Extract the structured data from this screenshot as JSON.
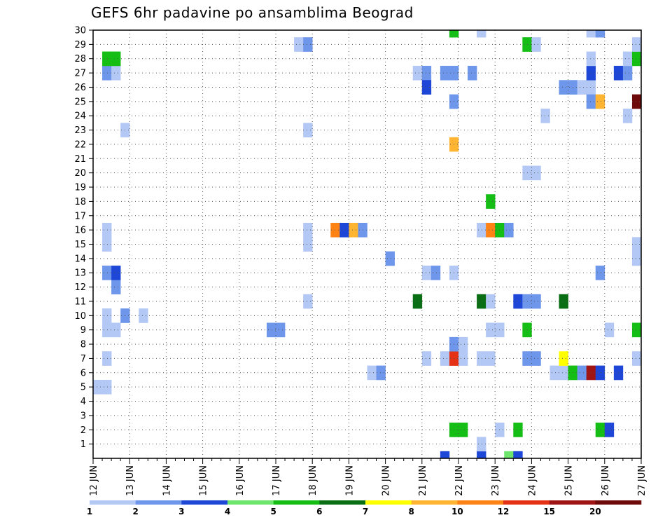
{
  "chart_data": {
    "type": "heatmap",
    "title": "GEFS 6hr padavine po ansamblima Beograd",
    "x_tick_labels": [
      "12 JUN",
      "13 JUN",
      "14 JUN",
      "15 JUN",
      "16 JUN",
      "17 JUN",
      "18 JUN",
      "19 JUN",
      "20 JUN",
      "21 JUN",
      "22 JUN",
      "23 JUN",
      "24 JUN",
      "25 JUN",
      "26 JUN",
      "27 JUN"
    ],
    "y_tick_labels": [
      1,
      2,
      3,
      4,
      5,
      6,
      7,
      8,
      9,
      10,
      11,
      12,
      13,
      14,
      15,
      16,
      17,
      18,
      19,
      20,
      21,
      22,
      23,
      24,
      25,
      26,
      27,
      28,
      29,
      30
    ],
    "x_range_days": [
      0,
      15
    ],
    "y_range": [
      0,
      30
    ],
    "grid": true,
    "legend": {
      "position": "bottom",
      "labels": [
        "1",
        "2",
        "3",
        "4",
        "5",
        "6",
        "7",
        "8",
        "10",
        "12",
        "15",
        "20"
      ],
      "colors": [
        "#b4c8f5",
        "#6e96eb",
        "#1e46d7",
        "#6ee66e",
        "#14be14",
        "#0a6e14",
        "#ffff00",
        "#ffb432",
        "#ff8214",
        "#e63214",
        "#a01414",
        "#6e0a0a"
      ]
    },
    "cells_note": "each cell: [day offset from 12 JUN (data units), ensemble member, color class 1-12]",
    "cells": [
      [
        0.0,
        5,
        1
      ],
      [
        0.25,
        5,
        1
      ],
      [
        0.25,
        7,
        1
      ],
      [
        0.25,
        9,
        1
      ],
      [
        0.5,
        9,
        1
      ],
      [
        0.25,
        10,
        1
      ],
      [
        0.5,
        12,
        2
      ],
      [
        0.25,
        13,
        2
      ],
      [
        0.5,
        13,
        3
      ],
      [
        0.25,
        15,
        1
      ],
      [
        0.25,
        16,
        1
      ],
      [
        0.25,
        27,
        2
      ],
      [
        0.5,
        27,
        1
      ],
      [
        0.25,
        28,
        5
      ],
      [
        0.5,
        28,
        5
      ],
      [
        0.75,
        10,
        2
      ],
      [
        0.75,
        23,
        1
      ],
      [
        1.25,
        10,
        1
      ],
      [
        4.75,
        9,
        2
      ],
      [
        5.0,
        9,
        2
      ],
      [
        5.75,
        11,
        1
      ],
      [
        5.75,
        15,
        1
      ],
      [
        5.75,
        16,
        1
      ],
      [
        5.75,
        23,
        1
      ],
      [
        5.5,
        29,
        1
      ],
      [
        5.75,
        29,
        2
      ],
      [
        6.5,
        16,
        9
      ],
      [
        6.75,
        16,
        3
      ],
      [
        7.0,
        16,
        8
      ],
      [
        7.25,
        16,
        2
      ],
      [
        7.5,
        6,
        1
      ],
      [
        7.75,
        6,
        2
      ],
      [
        8.0,
        14,
        2
      ],
      [
        8.75,
        11,
        6
      ],
      [
        9.0,
        7,
        1
      ],
      [
        9.0,
        13,
        1
      ],
      [
        9.25,
        13,
        2
      ],
      [
        8.75,
        27,
        1
      ],
      [
        9.0,
        27,
        2
      ],
      [
        9.0,
        26,
        3
      ],
      [
        9.5,
        0,
        3
      ],
      [
        9.5,
        7,
        1
      ],
      [
        9.75,
        2,
        5
      ],
      [
        10.0,
        2,
        5
      ],
      [
        9.75,
        7,
        10
      ],
      [
        10.0,
        7,
        1
      ],
      [
        9.75,
        8,
        2
      ],
      [
        10.0,
        8,
        1
      ],
      [
        9.75,
        13,
        1
      ],
      [
        9.75,
        22,
        8
      ],
      [
        9.75,
        25,
        2
      ],
      [
        9.75,
        27,
        2
      ],
      [
        9.5,
        27,
        2
      ],
      [
        9.75,
        30,
        5
      ],
      [
        10.5,
        0,
        3
      ],
      [
        10.5,
        1,
        1
      ],
      [
        10.5,
        7,
        1
      ],
      [
        10.5,
        11,
        6
      ],
      [
        10.5,
        16,
        1
      ],
      [
        10.75,
        16,
        9
      ],
      [
        11.0,
        16,
        5
      ],
      [
        11.25,
        16,
        2
      ],
      [
        10.75,
        18,
        5
      ],
      [
        10.5,
        30,
        1
      ],
      [
        10.25,
        27,
        2
      ],
      [
        10.75,
        9,
        1
      ],
      [
        11.0,
        9,
        1
      ],
      [
        10.75,
        11,
        1
      ],
      [
        10.75,
        7,
        1
      ],
      [
        11.0,
        2,
        1
      ],
      [
        11.25,
        0,
        4
      ],
      [
        11.5,
        0,
        3
      ],
      [
        11.5,
        2,
        5
      ],
      [
        11.5,
        11,
        3
      ],
      [
        11.75,
        11,
        2
      ],
      [
        12.0,
        11,
        2
      ],
      [
        11.75,
        7,
        2
      ],
      [
        12.0,
        7,
        2
      ],
      [
        11.75,
        9,
        5
      ],
      [
        11.75,
        20,
        1
      ],
      [
        12.0,
        20,
        1
      ],
      [
        11.75,
        29,
        5
      ],
      [
        12.0,
        29,
        1
      ],
      [
        12.25,
        24,
        1
      ],
      [
        12.5,
        6,
        1
      ],
      [
        12.75,
        6,
        1
      ],
      [
        12.75,
        11,
        6
      ],
      [
        12.75,
        7,
        7
      ],
      [
        13.0,
        6,
        5
      ],
      [
        13.25,
        6,
        2
      ],
      [
        13.5,
        6,
        11
      ],
      [
        13.75,
        6,
        3
      ],
      [
        13.75,
        2,
        5
      ],
      [
        14.0,
        2,
        3
      ],
      [
        13.75,
        13,
        2
      ],
      [
        14.0,
        9,
        1
      ],
      [
        12.75,
        26,
        2
      ],
      [
        13.0,
        26,
        2
      ],
      [
        13.25,
        26,
        1
      ],
      [
        13.5,
        26,
        1
      ],
      [
        13.5,
        25,
        2
      ],
      [
        13.75,
        25,
        8
      ],
      [
        13.5,
        27,
        3
      ],
      [
        13.5,
        28,
        1
      ],
      [
        13.5,
        30,
        1
      ],
      [
        13.75,
        30,
        2
      ],
      [
        14.25,
        27,
        3
      ],
      [
        14.5,
        27,
        2
      ],
      [
        14.25,
        6,
        3
      ],
      [
        14.5,
        24,
        1
      ],
      [
        14.5,
        28,
        1
      ],
      [
        14.75,
        25,
        12
      ],
      [
        14.75,
        9,
        5
      ],
      [
        14.75,
        7,
        1
      ],
      [
        14.75,
        14,
        1
      ],
      [
        14.75,
        15,
        1
      ],
      [
        14.75,
        28,
        5
      ],
      [
        14.75,
        29,
        1
      ]
    ]
  }
}
